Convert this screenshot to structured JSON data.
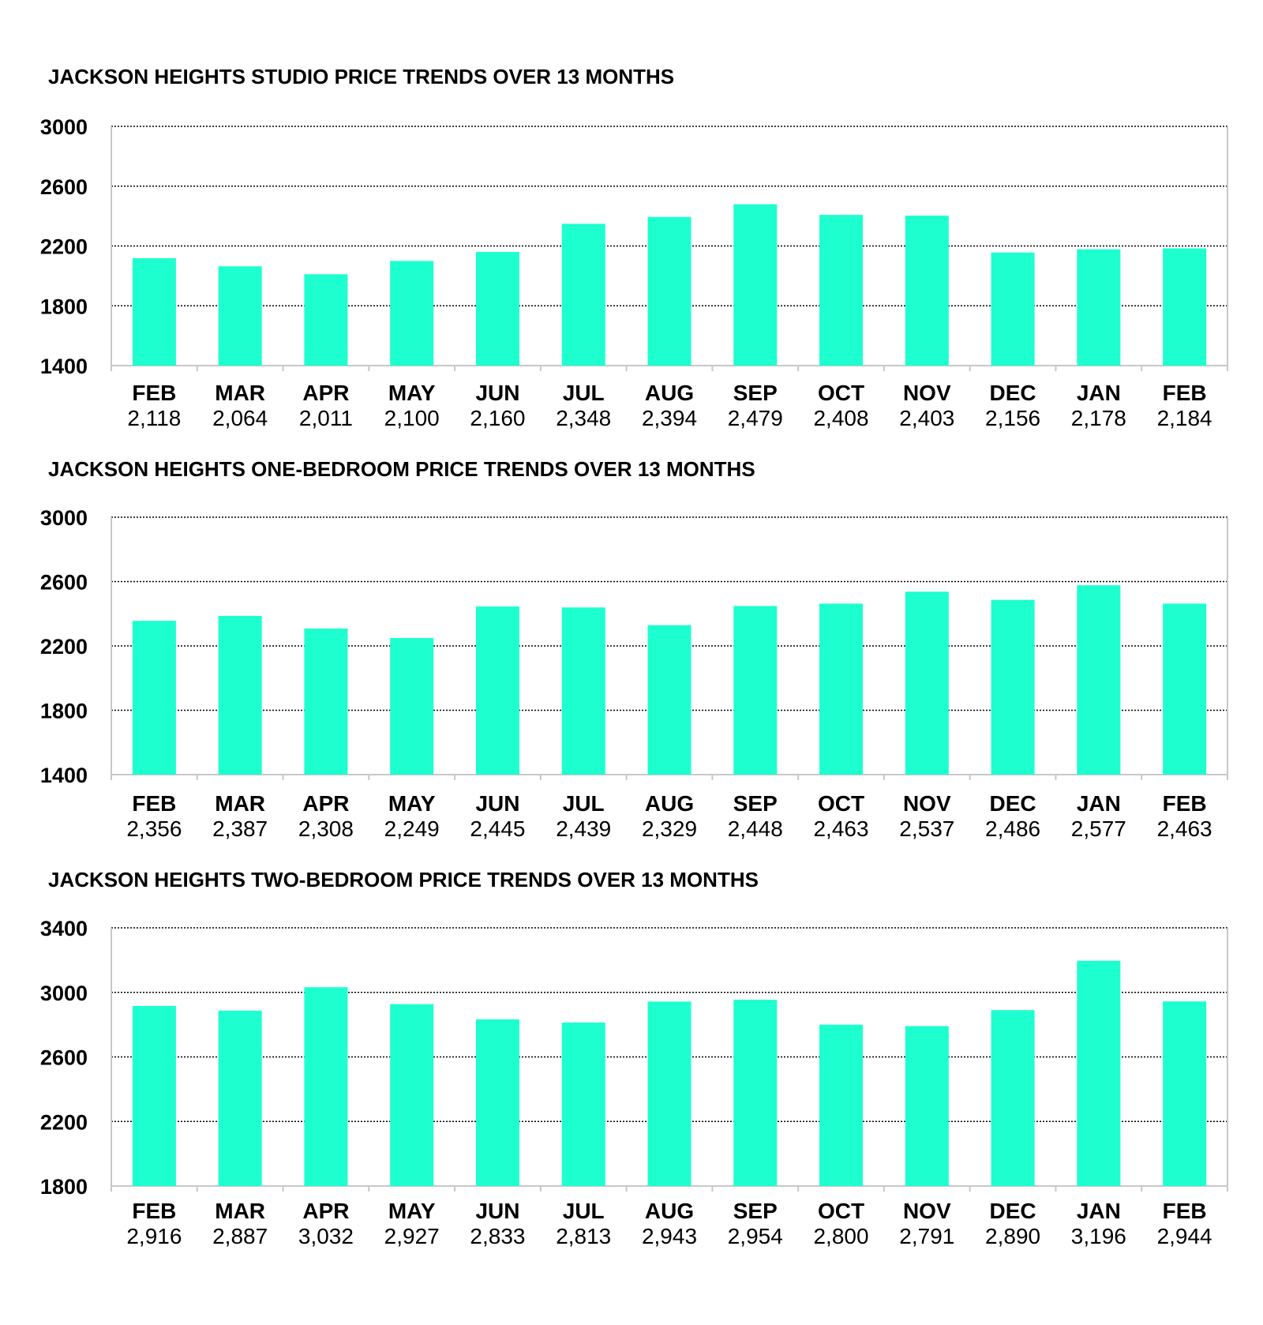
{
  "colors": {
    "bar": "#1dffcf",
    "grid": "#000000",
    "axis": "#c8c8c8",
    "text": "#000000"
  },
  "chart_data": [
    {
      "type": "bar",
      "title": "JACKSON HEIGHTS STUDIO PRICE TRENDS OVER 13 MONTHS",
      "categories": [
        "FEB",
        "MAR",
        "APR",
        "MAY",
        "JUN",
        "JUL",
        "AUG",
        "SEP",
        "OCT",
        "NOV",
        "DEC",
        "JAN",
        "FEB"
      ],
      "values": [
        2118,
        2064,
        2011,
        2100,
        2160,
        2348,
        2394,
        2479,
        2408,
        2403,
        2156,
        2178,
        2184
      ],
      "value_labels": [
        "2,118",
        "2,064",
        "2,011",
        "2,100",
        "2,160",
        "2,348",
        "2,394",
        "2,479",
        "2,408",
        "2,403",
        "2,156",
        "2,178",
        "2,184"
      ],
      "ylim": [
        1400,
        3000
      ],
      "yticks": [
        1400,
        1800,
        2200,
        2600,
        3000
      ],
      "xlabel": "",
      "ylabel": "",
      "grid": true
    },
    {
      "type": "bar",
      "title": "JACKSON HEIGHTS ONE-BEDROOM PRICE TRENDS OVER 13 MONTHS",
      "categories": [
        "FEB",
        "MAR",
        "APR",
        "MAY",
        "JUN",
        "JUL",
        "AUG",
        "SEP",
        "OCT",
        "NOV",
        "DEC",
        "JAN",
        "FEB"
      ],
      "values": [
        2356,
        2387,
        2308,
        2249,
        2445,
        2439,
        2329,
        2448,
        2463,
        2537,
        2486,
        2577,
        2463
      ],
      "value_labels": [
        "2,356",
        "2,387",
        "2,308",
        "2,249",
        "2,445",
        "2,439",
        "2,329",
        "2,448",
        "2,463",
        "2,537",
        "2,486",
        "2,577",
        "2,463"
      ],
      "ylim": [
        1400,
        3000
      ],
      "yticks": [
        1400,
        1800,
        2200,
        2600,
        3000
      ],
      "xlabel": "",
      "ylabel": "",
      "grid": true
    },
    {
      "type": "bar",
      "title": "JACKSON HEIGHTS TWO-BEDROOM PRICE TRENDS OVER 13 MONTHS",
      "categories": [
        "FEB",
        "MAR",
        "APR",
        "MAY",
        "JUN",
        "JUL",
        "AUG",
        "SEP",
        "OCT",
        "NOV",
        "DEC",
        "JAN",
        "FEB"
      ],
      "values": [
        2916,
        2887,
        3032,
        2927,
        2833,
        2813,
        2943,
        2954,
        2800,
        2791,
        2890,
        3196,
        2944
      ],
      "value_labels": [
        "2,916",
        "2,887",
        "3,032",
        "2,927",
        "2,833",
        "2,813",
        "2,943",
        "2,954",
        "2,800",
        "2,791",
        "2,890",
        "3,196",
        "2,944"
      ],
      "ylim": [
        1800,
        3400
      ],
      "yticks": [
        1800,
        2200,
        2600,
        3000,
        3400
      ],
      "xlabel": "",
      "ylabel": "",
      "grid": true
    }
  ]
}
